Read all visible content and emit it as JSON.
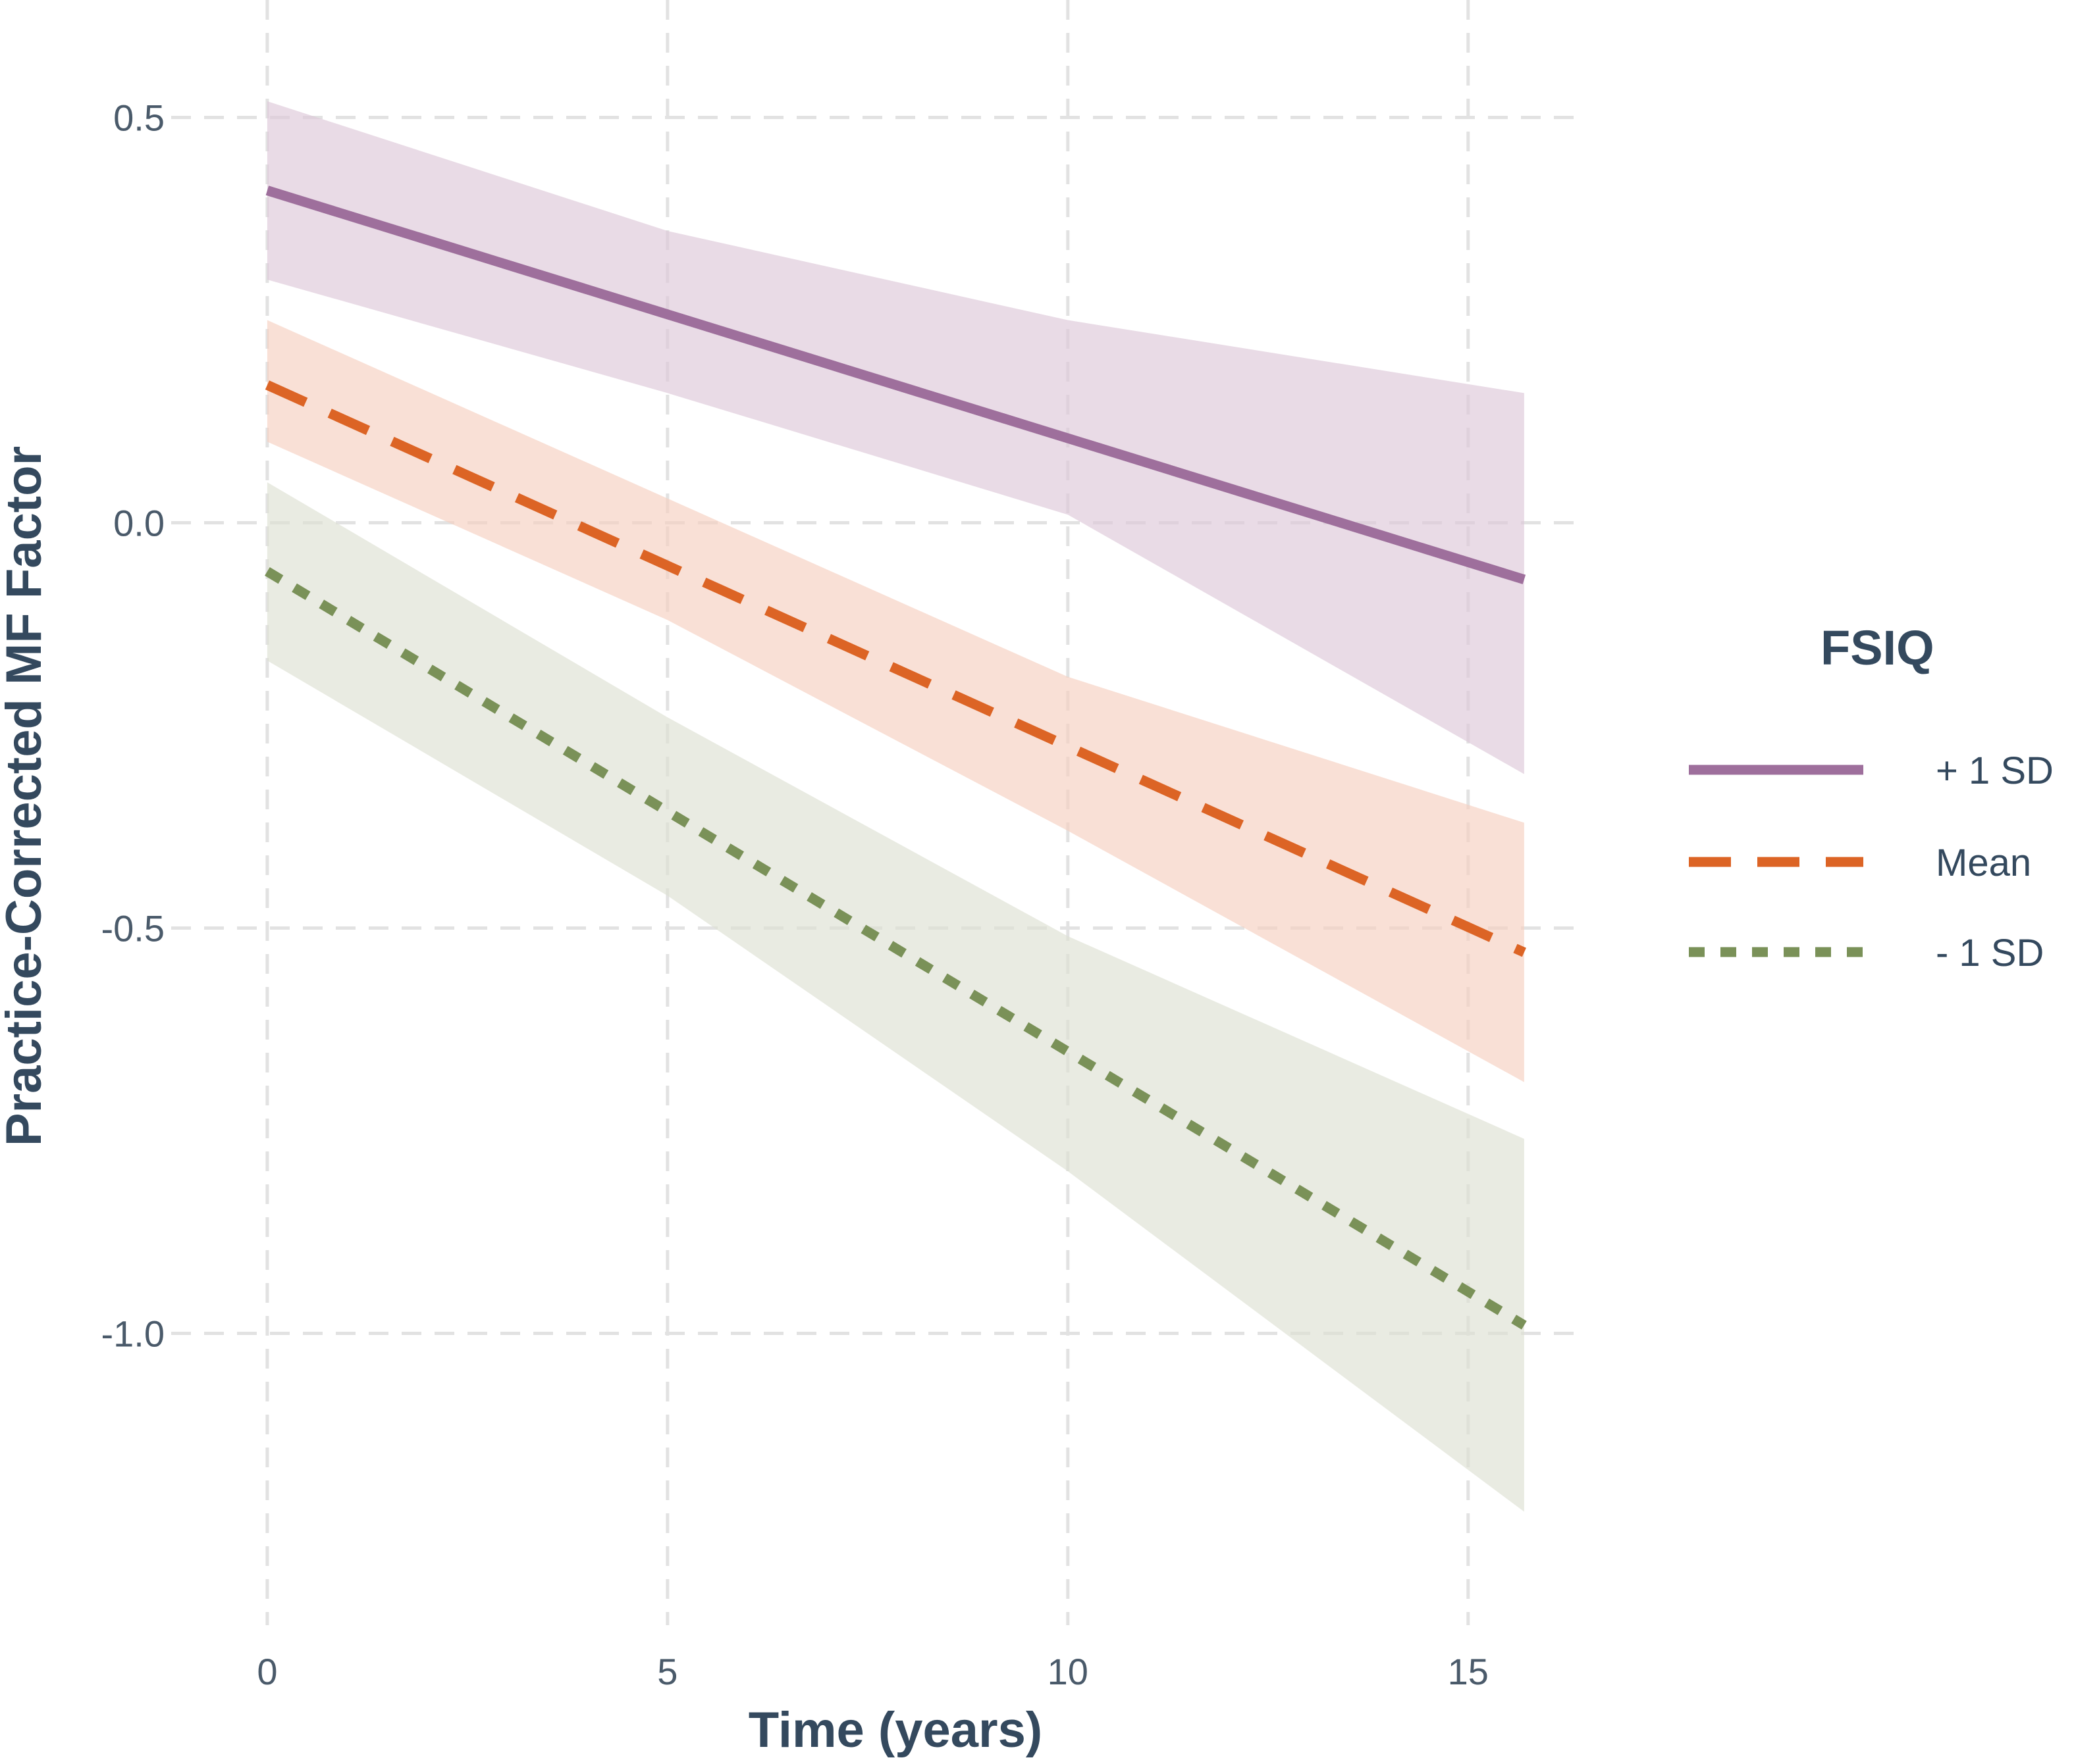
{
  "chart_data": {
    "type": "line",
    "xlabel": "Time (years)",
    "ylabel": "Practice-Corrected MF Factor",
    "xlim": [
      -1.2,
      16.4
    ],
    "ylim": [
      -1.36,
      0.58
    ],
    "x_ticks": [
      0,
      5,
      10,
      15
    ],
    "x_tick_labels": [
      "0",
      "5",
      "10",
      "15"
    ],
    "y_ticks": [
      0.5,
      0.0,
      -0.5,
      -1.0
    ],
    "y_tick_labels": [
      "0.5",
      "0.0",
      "-0.5",
      "-1.0"
    ],
    "grid": true,
    "grid_style": "dashed",
    "legend": {
      "title": "FSIQ",
      "position": "right"
    },
    "series": [
      {
        "name": "+ 1 SD",
        "color": "#9e6f9c",
        "line_style": "solid",
        "band_color": "#ddc8d8",
        "x": [
          0,
          15.7
        ],
        "y": [
          0.41,
          -0.07
        ],
        "ci_x": [
          0,
          5,
          10,
          15.7
        ],
        "ci_lower": [
          0.3,
          0.16,
          0.01,
          -0.31
        ],
        "ci_upper": [
          0.52,
          0.36,
          0.25,
          0.16
        ]
      },
      {
        "name": "Mean",
        "color": "#dc6425",
        "line_style": "dashed",
        "band_color": "#f6d0c0",
        "x": [
          0,
          15.7
        ],
        "y": [
          0.17,
          -0.53
        ],
        "ci_x": [
          0,
          5,
          10,
          15.7
        ],
        "ci_lower": [
          0.1,
          -0.12,
          -0.38,
          -0.69
        ],
        "ci_upper": [
          0.25,
          0.03,
          -0.19,
          -0.37
        ]
      },
      {
        "name": "- 1 SD",
        "color": "#7a9158",
        "line_style": "dotted",
        "band_color": "#dde1d3",
        "x": [
          0,
          15.7
        ],
        "y": [
          -0.06,
          -0.99
        ],
        "ci_x": [
          0,
          5,
          10,
          15.7
        ],
        "ci_lower": [
          -0.17,
          -0.46,
          -0.8,
          -1.22
        ],
        "ci_upper": [
          0.05,
          -0.24,
          -0.51,
          -0.76
        ]
      }
    ]
  }
}
